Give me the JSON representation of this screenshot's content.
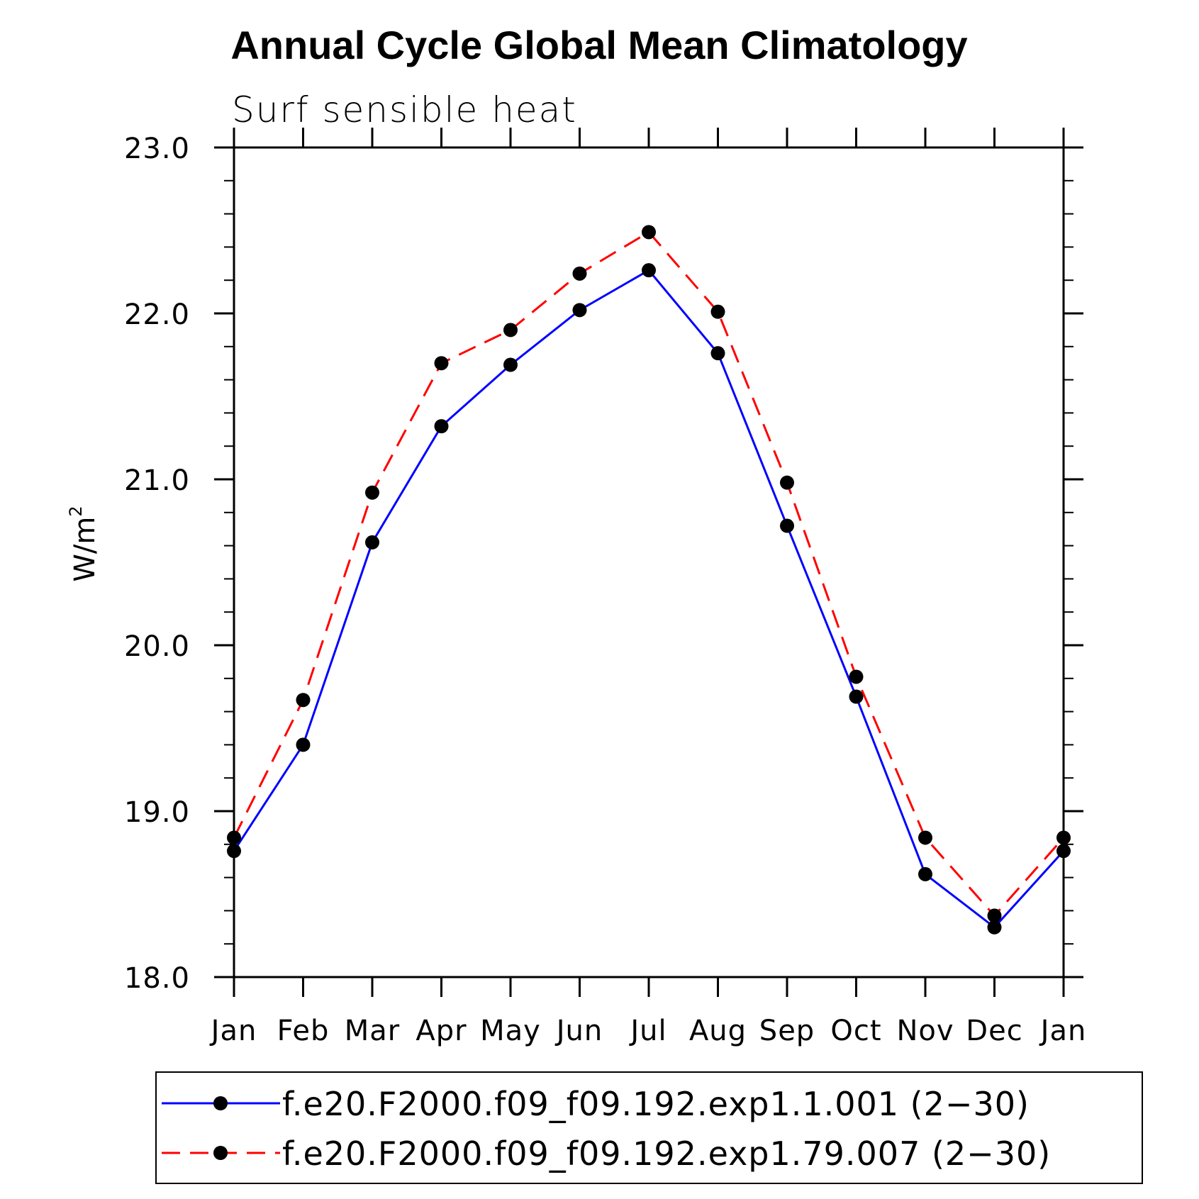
{
  "chart_data": {
    "type": "line",
    "title": "Annual Cycle Global Mean Climatology",
    "subtitle": "Surf sensible heat",
    "ylabel_main": "W/m",
    "ylabel_sup": "2",
    "xlabel": "",
    "categories": [
      "Jan",
      "Feb",
      "Mar",
      "Apr",
      "May",
      "Jun",
      "Jul",
      "Aug",
      "Sep",
      "Oct",
      "Nov",
      "Dec",
      "Jan"
    ],
    "ylim": [
      18.0,
      23.0
    ],
    "yticks": [
      "18.0",
      "19.0",
      "20.0",
      "21.0",
      "22.0",
      "23.0"
    ],
    "yminor_step": 0.2,
    "series": [
      {
        "name": "f.e20.F2000.f09_f09.192.exp1.1.001 (2−30)",
        "color": "#0000ff",
        "dash": "solid",
        "values": [
          18.76,
          19.4,
          20.62,
          21.32,
          21.69,
          22.02,
          22.26,
          21.76,
          20.72,
          19.69,
          18.62,
          18.3,
          18.76
        ]
      },
      {
        "name": "f.e20.F2000.f09_f09.192.exp1.79.007 (2−30)",
        "color": "#ff0000",
        "dash": "dashed",
        "values": [
          18.84,
          19.67,
          20.92,
          21.7,
          21.9,
          22.24,
          22.49,
          22.01,
          20.98,
          19.81,
          18.84,
          18.37,
          18.84
        ]
      }
    ],
    "marker": "filled-circle",
    "marker_color": "#000000",
    "legend_position": "bottom"
  }
}
